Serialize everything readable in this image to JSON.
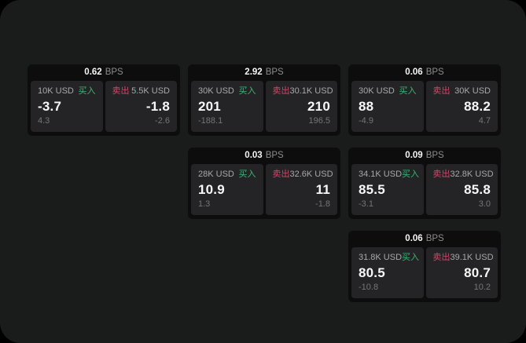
{
  "colors": {
    "page_background": "#1a1b1b",
    "card_background": "#0d0d0e",
    "pane_background": "#242426",
    "buy_green": "#3eb371",
    "sell_red": "#cb4a67"
  },
  "cards": [
    {
      "bps": "0.62",
      "unit": "BPS",
      "buy": {
        "amount": "10K USD",
        "label": "买入",
        "value": "-3.7",
        "sub": "4.3"
      },
      "sell": {
        "label": "卖出",
        "amount": "5.5K USD",
        "value": "-1.8",
        "sub": "-2.6"
      }
    },
    {
      "bps": "2.92",
      "unit": "BPS",
      "buy": {
        "amount": "30K USD",
        "label": "买入",
        "value": "201",
        "sub": "-188.1"
      },
      "sell": {
        "label": "卖出",
        "amount": "30.1K USD",
        "value": "210",
        "sub": "196.5"
      }
    },
    {
      "bps": "0.06",
      "unit": "BPS",
      "buy": {
        "amount": "30K USD",
        "label": "买入",
        "value": "88",
        "sub": "-4.9"
      },
      "sell": {
        "label": "卖出",
        "amount": "30K USD",
        "value": "88.2",
        "sub": "4.7"
      }
    },
    {
      "bps": "0.03",
      "unit": "BPS",
      "buy": {
        "amount": "28K USD",
        "label": "买入",
        "value": "10.9",
        "sub": "1.3"
      },
      "sell": {
        "label": "卖出",
        "amount": "32.6K USD",
        "value": "11",
        "sub": "-1.8"
      }
    },
    {
      "bps": "0.09",
      "unit": "BPS",
      "buy": {
        "amount": "34.1K USD",
        "label": "买入",
        "value": "85.5",
        "sub": "-3.1"
      },
      "sell": {
        "label": "卖出",
        "amount": "32.8K USD",
        "value": "85.8",
        "sub": "3.0"
      }
    },
    {
      "bps": "0.06",
      "unit": "BPS",
      "buy": {
        "amount": "31.8K USD",
        "label": "买入",
        "value": "80.5",
        "sub": "-10.8"
      },
      "sell": {
        "label": "卖出",
        "amount": "39.1K USD",
        "value": "80.7",
        "sub": "10.2"
      }
    }
  ]
}
